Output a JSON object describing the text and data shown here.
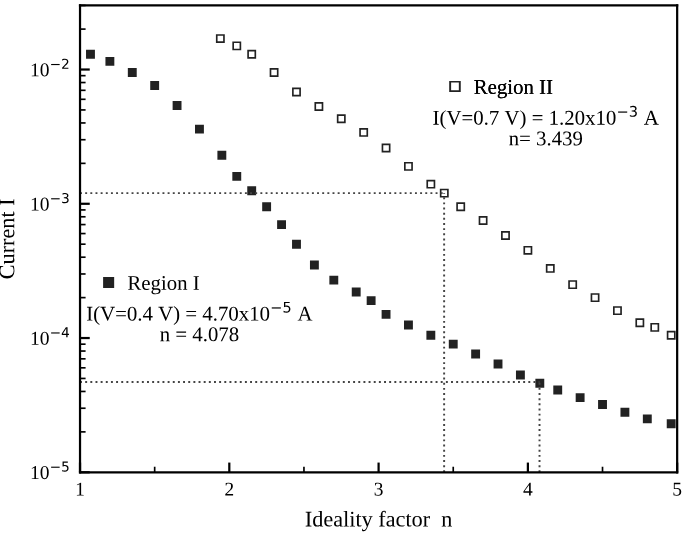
{
  "chart_data": {
    "type": "scatter",
    "xlabel": "Ideality factor  n",
    "ylabel": "Current I",
    "log": "y",
    "marker": "square",
    "legend": "center",
    "xlim": [
      1,
      5
    ],
    "xticks": [
      1,
      2,
      3,
      4,
      5
    ],
    "ylim": [
      1e-05,
      0.03
    ],
    "yticks": [
      {
        "value": 1e-05,
        "label": "10$^{−5}$"
      },
      {
        "value": 0.0001,
        "label": "10$^{−4}$"
      },
      {
        "value": 0.001,
        "label": "10$^{−3}$"
      },
      {
        "value": 0.01,
        "label": "10$^{−2}$"
      }
    ],
    "series": [
      {
        "name": "Region I",
        "color": "#222222",
        "x": [
          1.07,
          1.2,
          1.35,
          1.5,
          1.65,
          1.8,
          1.95,
          2.05,
          2.15,
          2.25,
          2.35,
          2.45,
          2.57,
          2.7,
          2.85,
          2.95,
          3.05,
          3.2,
          3.35,
          3.5,
          3.65,
          3.8,
          3.95,
          4.08,
          4.2,
          4.35,
          4.5,
          4.65,
          4.8,
          4.96
        ],
        "values": [
          0.013,
          0.0115,
          0.0095,
          0.0076,
          0.0054,
          0.0036,
          0.0023,
          0.0016,
          0.00125,
          0.00095,
          0.0007,
          0.0005,
          0.00035,
          0.00027,
          0.00022,
          0.00019,
          0.00015,
          0.000125,
          0.000105,
          9e-05,
          7.6e-05,
          6.4e-05,
          5.3e-05,
          4.6e-05,
          4.1e-05,
          3.6e-05,
          3.2e-05,
          2.8e-05,
          2.5e-05,
          2.3e-05
        ]
      },
      {
        "name": "Region II",
        "color": "#222222",
        "x": [
          1.94,
          2.05,
          2.15,
          2.3,
          2.45,
          2.6,
          2.75,
          2.9,
          3.05,
          3.2,
          3.35,
          3.44,
          3.55,
          3.7,
          3.85,
          4.0,
          4.15,
          4.3,
          4.45,
          4.6,
          4.75,
          4.85,
          4.96
        ],
        "values": [
          0.017,
          0.015,
          0.013,
          0.0095,
          0.0068,
          0.0053,
          0.0043,
          0.0034,
          0.0026,
          0.0019,
          0.0014,
          0.0012,
          0.00095,
          0.00075,
          0.00058,
          0.00045,
          0.00033,
          0.00025,
          0.0002,
          0.00016,
          0.00013,
          0.00012,
          0.000105
        ]
      }
    ],
    "annotations": [
      "I(V=0.4 V) = 4.70x10$^{−5}$ A\nn = 4.078",
      "I(V=0.7 V) = 1.20x10$^{−3}$ A\nn= 3.439"
    ],
    "ref_lines": [
      {
        "axis": "y",
        "value": 0.0012,
        "line_style": "dotted"
      },
      {
        "axis": "x",
        "value": 3.439,
        "line_style": "dotted"
      },
      {
        "axis": "y",
        "value": 4.7e-05,
        "line_style": "dotted"
      },
      {
        "axis": "x",
        "value": 4.078,
        "line_style": "dotted"
      }
    ]
  }
}
